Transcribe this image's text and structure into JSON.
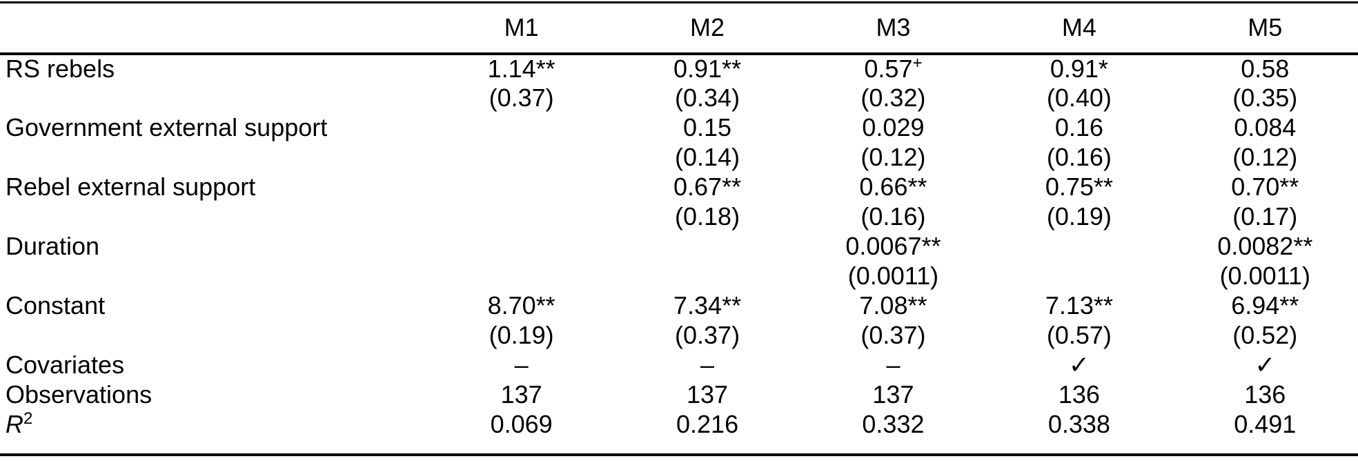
{
  "colors": {
    "text": "#000000",
    "background": "#ffffff",
    "rule": "#000000"
  },
  "table": {
    "header": {
      "label": "",
      "cols": [
        "M1",
        "M2",
        "M3",
        "M4",
        "M5"
      ]
    },
    "lines": [
      {
        "type": "coef",
        "label": "RS rebels",
        "cells": [
          {
            "v": "1.14**"
          },
          {
            "v": "0.91**"
          },
          {
            "v": "0.57",
            "sup": "+"
          },
          {
            "v": "0.91*"
          },
          {
            "v": "0.58"
          }
        ]
      },
      {
        "type": "se",
        "label": "",
        "cells": [
          {
            "v": "(0.37)"
          },
          {
            "v": "(0.34)"
          },
          {
            "v": "(0.32)"
          },
          {
            "v": "(0.40)"
          },
          {
            "v": "(0.35)"
          }
        ]
      },
      {
        "type": "coef",
        "label": "Government external support",
        "cells": [
          {
            "v": ""
          },
          {
            "v": "0.15"
          },
          {
            "v": "0.029"
          },
          {
            "v": "0.16"
          },
          {
            "v": "0.084"
          }
        ]
      },
      {
        "type": "se",
        "label": "",
        "cells": [
          {
            "v": ""
          },
          {
            "v": "(0.14)"
          },
          {
            "v": "(0.12)"
          },
          {
            "v": "(0.16)"
          },
          {
            "v": "(0.12)"
          }
        ]
      },
      {
        "type": "coef",
        "label": "Rebel external support",
        "cells": [
          {
            "v": ""
          },
          {
            "v": "0.67**"
          },
          {
            "v": "0.66**"
          },
          {
            "v": "0.75**"
          },
          {
            "v": "0.70**"
          }
        ]
      },
      {
        "type": "se",
        "label": "",
        "cells": [
          {
            "v": ""
          },
          {
            "v": "(0.18)"
          },
          {
            "v": "(0.16)"
          },
          {
            "v": "(0.19)"
          },
          {
            "v": "(0.17)"
          }
        ]
      },
      {
        "type": "coef",
        "label": "Duration",
        "cells": [
          {
            "v": ""
          },
          {
            "v": ""
          },
          {
            "v": "0.0067**"
          },
          {
            "v": ""
          },
          {
            "v": "0.0082**"
          }
        ]
      },
      {
        "type": "se",
        "label": "",
        "cells": [
          {
            "v": ""
          },
          {
            "v": ""
          },
          {
            "v": "(0.0011)"
          },
          {
            "v": ""
          },
          {
            "v": "(0.0011)"
          }
        ]
      },
      {
        "type": "coef",
        "label": "Constant",
        "cells": [
          {
            "v": "8.70**"
          },
          {
            "v": "7.34**"
          },
          {
            "v": "7.08**"
          },
          {
            "v": "7.13**"
          },
          {
            "v": "6.94**"
          }
        ]
      },
      {
        "type": "se",
        "label": "",
        "cells": [
          {
            "v": "(0.19)"
          },
          {
            "v": "(0.37)"
          },
          {
            "v": "(0.37)"
          },
          {
            "v": "(0.57)"
          },
          {
            "v": "(0.52)"
          }
        ]
      },
      {
        "type": "stat",
        "label": "Covariates",
        "cells": [
          {
            "v": "–"
          },
          {
            "v": "–"
          },
          {
            "v": "–"
          },
          {
            "v": "✓"
          },
          {
            "v": "✓"
          }
        ]
      },
      {
        "type": "stat",
        "label": "Observations",
        "cells": [
          {
            "v": "137"
          },
          {
            "v": "137"
          },
          {
            "v": "137"
          },
          {
            "v": "136"
          },
          {
            "v": "136"
          }
        ]
      },
      {
        "type": "stat",
        "label": "R",
        "label_sup": "2",
        "cells": [
          {
            "v": "0.069"
          },
          {
            "v": "0.216"
          },
          {
            "v": "0.332"
          },
          {
            "v": "0.338"
          },
          {
            "v": "0.491"
          }
        ]
      }
    ]
  }
}
